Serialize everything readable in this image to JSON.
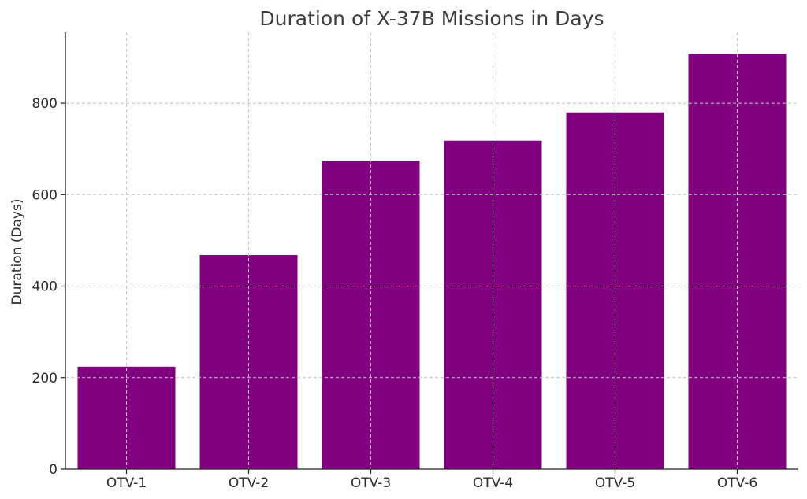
{
  "chart_data": {
    "type": "bar",
    "title": "Duration of X-37B Missions in Days",
    "xlabel": "",
    "ylabel": "Duration (Days)",
    "categories": [
      "OTV-1",
      "OTV-2",
      "OTV-3",
      "OTV-4",
      "OTV-5",
      "OTV-6"
    ],
    "values": [
      224,
      468,
      674,
      718,
      780,
      908
    ],
    "ylim": [
      0,
      955
    ],
    "yticks": [
      0,
      200,
      400,
      600,
      800
    ],
    "ytick_labels": [
      "0",
      "200",
      "400",
      "600",
      "800"
    ],
    "grid": true,
    "legend": "none",
    "bar_color": "#800080"
  }
}
